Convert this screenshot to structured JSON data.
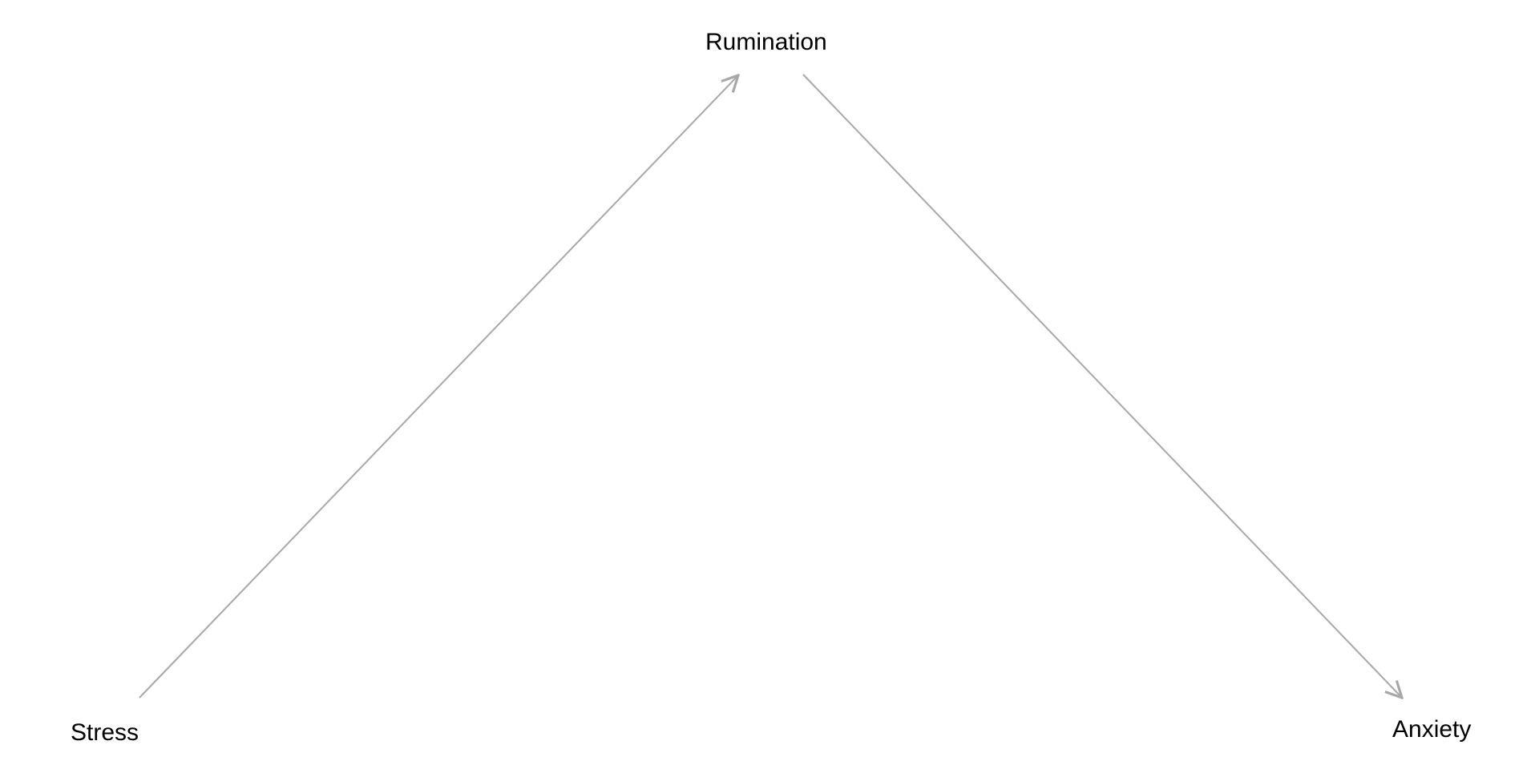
{
  "nodes": {
    "rumination": "Rumination",
    "stress": "Stress",
    "anxiety": "Anxiety"
  },
  "edges": [
    {
      "from": "Stress",
      "to": "Rumination"
    },
    {
      "from": "Rumination",
      "to": "Anxiety"
    }
  ],
  "colors": {
    "edge": "#a8a8a8",
    "text": "#000000",
    "background": "#ffffff"
  }
}
